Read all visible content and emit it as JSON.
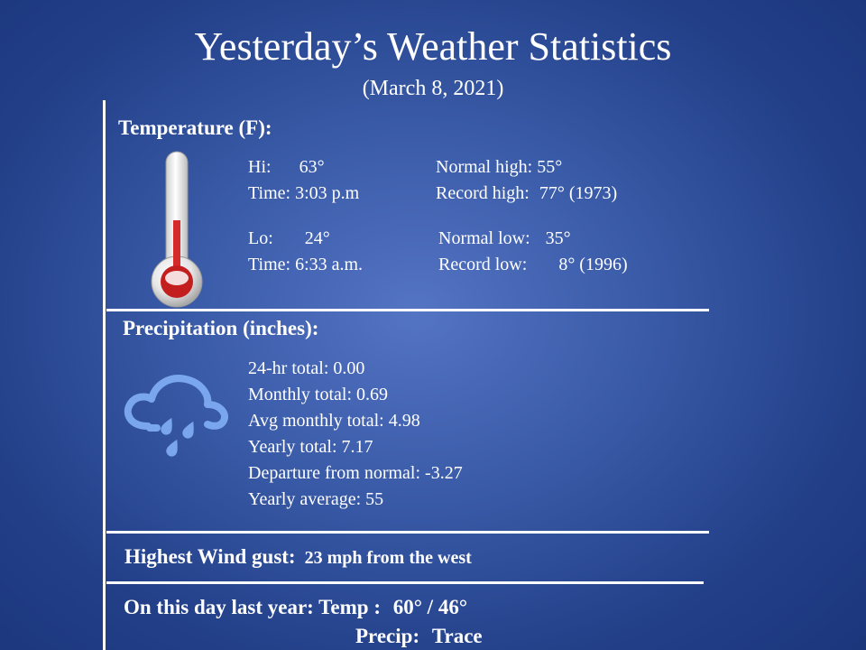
{
  "header": {
    "title": "Yesterday’s Weather Statistics",
    "date": "(March 8, 2021)"
  },
  "temperature": {
    "heading": "Temperature (F):",
    "hi_label": "Hi:",
    "hi_value": "63°",
    "hi_time_label": "Time:",
    "hi_time": "3:03 p.m",
    "normal_high_label": "Normal high:",
    "normal_high": "55°",
    "record_high_label": "Record high:",
    "record_high": "77° (1973)",
    "lo_label": "Lo:",
    "lo_value": "24°",
    "lo_time_label": "Time:",
    "lo_time": "6:33 a.m.",
    "normal_low_label": "Normal low:",
    "normal_low": "35°",
    "record_low_label": "Record low:",
    "record_low": "8° (1996)",
    "icon": "thermometer-icon"
  },
  "precipitation": {
    "heading": "Precipitation (inches):",
    "icon": "rain-cloud-icon",
    "lines": [
      "24-hr total: 0.00",
      "Monthly total: 0.69",
      "Avg monthly total: 4.98",
      "Yearly total: 7.17",
      "Departure from normal: -3.27",
      "Yearly average: 55"
    ]
  },
  "wind": {
    "label": "Highest Wind gust:",
    "value": "23 mph from the west"
  },
  "last_year": {
    "label": "On this day last year: Temp  :",
    "temp": "60° / 46°",
    "precip_label": "Precip:",
    "precip": "Trace"
  },
  "colors": {
    "mercury": "#d42a2a",
    "cloud": "#7aa6ee",
    "lines": "#ffffff"
  }
}
